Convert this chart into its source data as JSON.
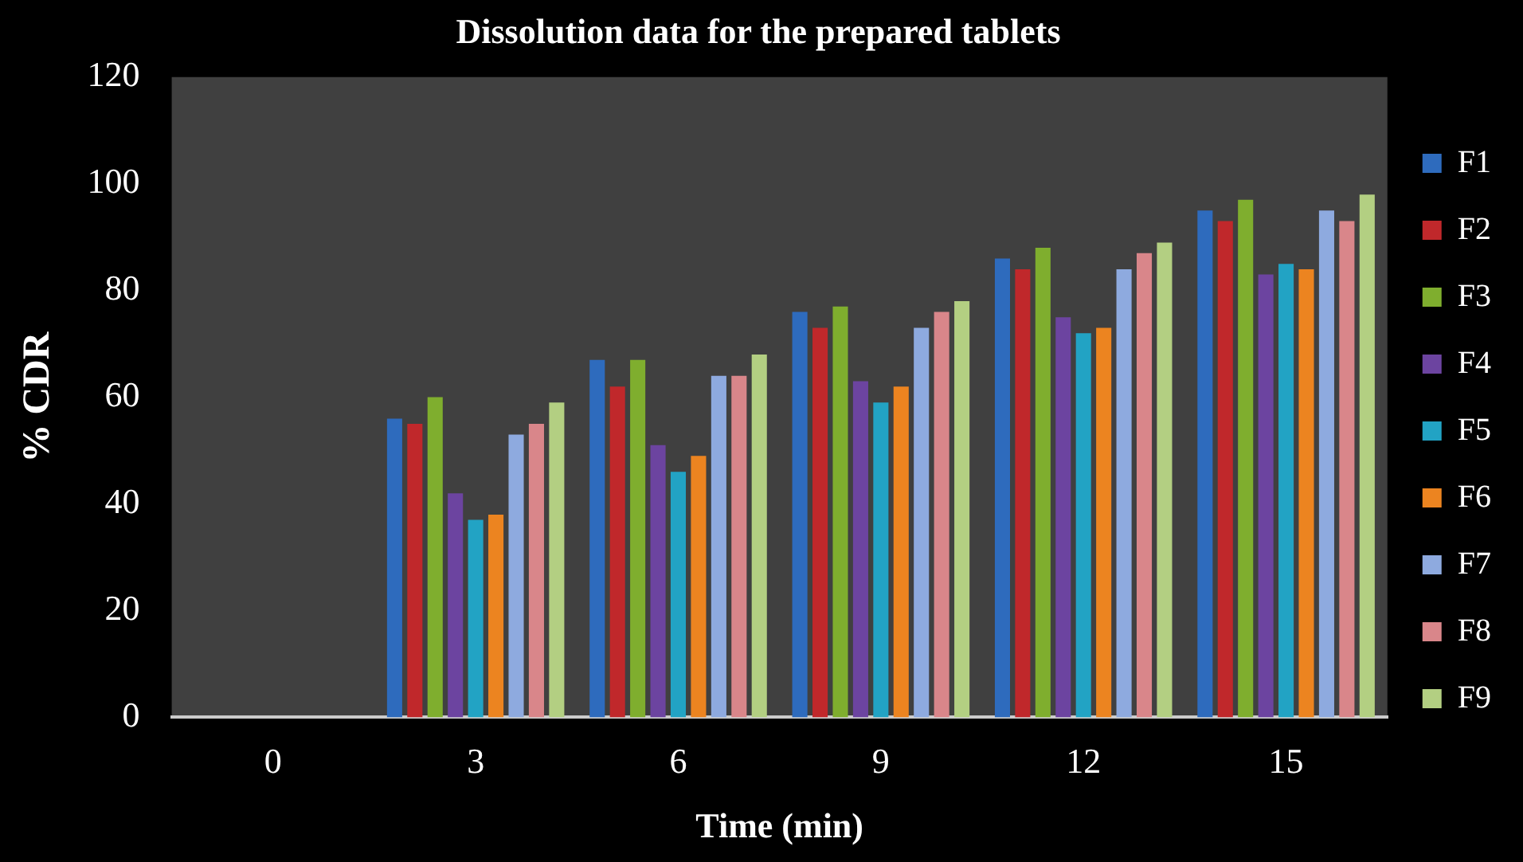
{
  "chart_data": {
    "type": "bar",
    "title": "Dissolution data for the prepared tablets",
    "xlabel": "Time (min)",
    "ylabel": "% CDR",
    "categories": [
      "0",
      "3",
      "6",
      "9",
      "12",
      "15"
    ],
    "series": [
      {
        "name": "F1",
        "color": "#2e6bbd",
        "values": [
          0,
          56,
          67,
          76,
          86,
          95
        ]
      },
      {
        "name": "F2",
        "color": "#c0282b",
        "values": [
          0,
          55,
          62,
          73,
          84,
          93
        ]
      },
      {
        "name": "F3",
        "color": "#7fae2e",
        "values": [
          0,
          60,
          67,
          77,
          88,
          97
        ]
      },
      {
        "name": "F4",
        "color": "#6c44a0",
        "values": [
          0,
          42,
          51,
          63,
          75,
          83
        ]
      },
      {
        "name": "F5",
        "color": "#22a3c4",
        "values": [
          0,
          37,
          46,
          59,
          72,
          85
        ]
      },
      {
        "name": "F6",
        "color": "#ec8420",
        "values": [
          0,
          38,
          49,
          62,
          73,
          84
        ]
      },
      {
        "name": "F7",
        "color": "#8eaadf",
        "values": [
          0,
          53,
          64,
          73,
          84,
          95
        ]
      },
      {
        "name": "F8",
        "color": "#d9868a",
        "values": [
          0,
          55,
          64,
          76,
          87,
          93
        ]
      },
      {
        "name": "F9",
        "color": "#b3cf82",
        "values": [
          0,
          59,
          68,
          78,
          89,
          98
        ]
      }
    ],
    "ylim": [
      0,
      120
    ],
    "yticks": [
      0,
      20,
      40,
      60,
      80,
      100,
      120
    ],
    "grid": false,
    "legend": "right"
  }
}
